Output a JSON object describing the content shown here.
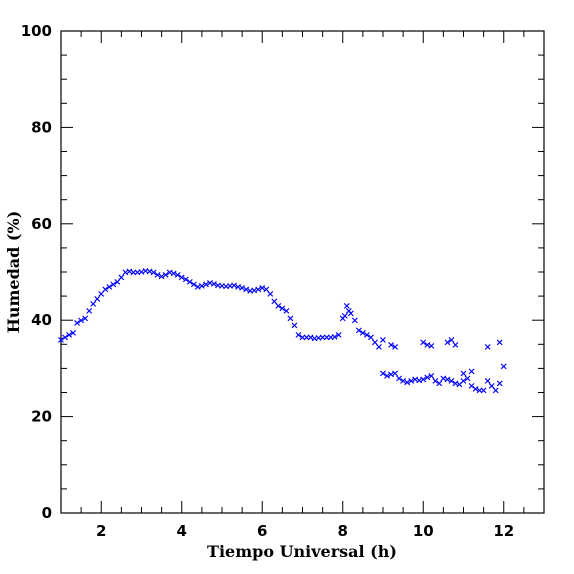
{
  "chart_data": {
    "type": "scatter",
    "xlabel": "Tiempo Universal (h)",
    "ylabel": "Humedad (%)",
    "xlim": [
      1,
      13
    ],
    "ylim": [
      0,
      100
    ],
    "x_ticks": [
      2,
      4,
      6,
      8,
      10,
      12
    ],
    "y_ticks": [
      0,
      20,
      40,
      60,
      80,
      100
    ],
    "marker": "×",
    "marker_color": "#0000ff",
    "grid": false,
    "series": [
      {
        "x": [
          1.0,
          1.1,
          1.2,
          1.3,
          1.4,
          1.5,
          1.6,
          1.7,
          1.8,
          1.9,
          2.0,
          2.1,
          2.2,
          2.3,
          2.4,
          2.5,
          2.6,
          2.7,
          2.8,
          2.9,
          3.0,
          3.1,
          3.2,
          3.3,
          3.4,
          3.5,
          3.6,
          3.7,
          3.8,
          3.9,
          4.0,
          4.1,
          4.2,
          4.3,
          4.4,
          4.5,
          4.6,
          4.7,
          4.8,
          4.9,
          5.0,
          5.1,
          5.2,
          5.3,
          5.4,
          5.5,
          5.6,
          5.7,
          5.8,
          5.9,
          6.0,
          6.1,
          6.2,
          6.3,
          6.4,
          6.5,
          6.6,
          6.7,
          6.8,
          6.9,
          7.0,
          7.1,
          7.2,
          7.3,
          7.4,
          7.5,
          7.6,
          7.7,
          7.8,
          7.9,
          8.0,
          8.05,
          8.1,
          8.15,
          8.2,
          8.3,
          8.4,
          8.5,
          8.6,
          8.7,
          8.8,
          8.9,
          9.0,
          9.1,
          9.2,
          9.3,
          9.4,
          9.5,
          9.6,
          9.7,
          9.8,
          9.9,
          10.0,
          10.1,
          10.2,
          10.3,
          10.4,
          10.5,
          10.6,
          10.7,
          10.8,
          10.9,
          11.0,
          11.1,
          11.2,
          11.3,
          11.4,
          11.5,
          11.6,
          11.7,
          11.8,
          11.9,
          12.0,
          9.0,
          9.2,
          9.3,
          10.0,
          10.1,
          10.2,
          10.6,
          10.7,
          10.8,
          11.0,
          11.2,
          11.6,
          11.9
        ],
        "y": [
          36,
          36.5,
          37,
          37.5,
          39.5,
          40,
          40.5,
          42,
          43.5,
          44.5,
          45.5,
          46.5,
          47,
          47.5,
          48,
          49,
          50,
          50.2,
          50,
          50,
          50.1,
          50.3,
          50.2,
          50,
          49.5,
          49.2,
          49.5,
          50,
          49.8,
          49.5,
          49,
          48.5,
          48,
          47.5,
          47,
          47.2,
          47.5,
          47.8,
          47.6,
          47.3,
          47.2,
          47.1,
          47.2,
          47.3,
          47.0,
          46.8,
          46.5,
          46.2,
          46.3,
          46.5,
          46.8,
          46.5,
          45.5,
          44,
          43,
          42.5,
          42,
          40.5,
          39,
          37,
          36.5,
          36.5,
          36.5,
          36.3,
          36.4,
          36.5,
          36.5,
          36.5,
          36.6,
          37,
          40.5,
          41,
          43,
          42,
          41.5,
          40,
          38,
          37.5,
          37,
          36.5,
          35.5,
          34.5,
          29,
          28.5,
          28.8,
          29,
          28,
          27.5,
          27.2,
          27.5,
          27.8,
          27.6,
          27.8,
          28.2,
          28.5,
          27.5,
          27,
          28,
          27.8,
          27.5,
          27,
          26.8,
          27.5,
          28,
          26.5,
          25.8,
          25.5,
          25.5,
          27.5,
          26.5,
          25.5,
          27,
          30.5,
          36,
          35,
          34.5,
          35.5,
          35,
          34.8,
          35.5,
          36,
          35,
          29,
          29.5,
          34.5,
          35.5
        ]
      }
    ]
  }
}
